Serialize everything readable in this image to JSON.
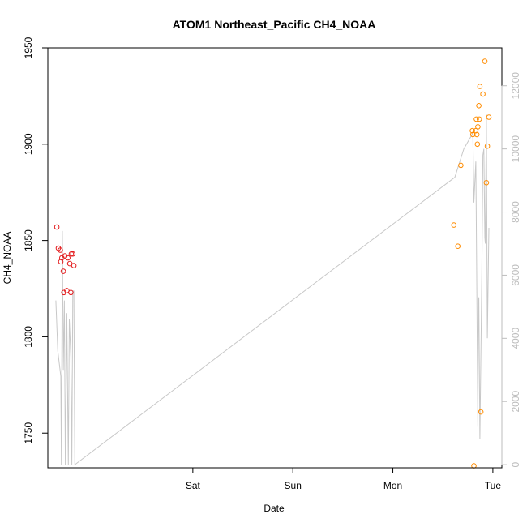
{
  "chart_data": {
    "type": "scatter",
    "title": "ATOM1 Northeast_Pacific CH4_NOAA",
    "xlabel": "Date",
    "ylabel": "CH4_NOAA",
    "x_ticks": [
      {
        "label": "Sat",
        "day": 1.0
      },
      {
        "label": "Sun",
        "day": 2.0
      },
      {
        "label": "Mon",
        "day": 3.0
      },
      {
        "label": "Tue",
        "day": 4.0
      }
    ],
    "xlim_days": [
      -0.45,
      4.09
    ],
    "ylim": [
      1732,
      1950
    ],
    "y_ticks": [
      1750,
      1800,
      1850,
      1900,
      1950
    ],
    "y2_ticks": [
      0,
      2000,
      4000,
      6000,
      8000,
      10000,
      12000
    ],
    "y2lim": [
      -100,
      13200
    ],
    "colors": {
      "axis": "#000000",
      "right_axis": "#bdbdbd",
      "altitude_line": "#c8c8c8",
      "segment_1": "#e31a1c",
      "segment_2": "#ff8c00"
    },
    "series": [
      {
        "color": "#e31a1c",
        "points": [
          [
            -0.36,
            1857
          ],
          [
            -0.345,
            1846
          ],
          [
            -0.325,
            1845
          ],
          [
            -0.32,
            1839
          ],
          [
            -0.31,
            1841
          ],
          [
            -0.295,
            1834
          ],
          [
            -0.29,
            1823
          ],
          [
            -0.28,
            1842
          ],
          [
            -0.26,
            1824
          ],
          [
            -0.25,
            1841
          ],
          [
            -0.23,
            1838
          ],
          [
            -0.22,
            1823
          ],
          [
            -0.215,
            1843
          ],
          [
            -0.2,
            1843
          ],
          [
            -0.19,
            1837
          ]
        ]
      },
      {
        "color": "#ff8c00",
        "points": [
          [
            3.61,
            1858
          ],
          [
            3.65,
            1847
          ],
          [
            3.68,
            1889
          ],
          [
            3.795,
            1907
          ],
          [
            3.8,
            1905
          ],
          [
            3.81,
            1733
          ],
          [
            3.83,
            1907
          ],
          [
            3.835,
            1913
          ],
          [
            3.84,
            1905
          ],
          [
            3.845,
            1900
          ],
          [
            3.85,
            1909
          ],
          [
            3.86,
            1920
          ],
          [
            3.865,
            1913
          ],
          [
            3.87,
            1930
          ],
          [
            3.88,
            1761
          ],
          [
            3.9,
            1926
          ],
          [
            3.92,
            1943
          ],
          [
            3.935,
            1880
          ],
          [
            3.945,
            1899
          ],
          [
            3.96,
            1914
          ]
        ]
      }
    ],
    "altitude": [
      [
        -0.37,
        5200
      ],
      [
        -0.35,
        3600
      ],
      [
        -0.32,
        2800
      ],
      [
        -0.315,
        0
      ],
      [
        -0.305,
        7400
      ],
      [
        -0.295,
        3000
      ],
      [
        -0.285,
        5200
      ],
      [
        -0.275,
        0
      ],
      [
        -0.26,
        4800
      ],
      [
        -0.245,
        0
      ],
      [
        -0.235,
        4600
      ],
      [
        -0.22,
        3400
      ],
      [
        -0.21,
        0
      ],
      [
        -0.2,
        5500
      ],
      [
        -0.19,
        5500
      ],
      [
        -0.18,
        0
      ],
      [
        3.62,
        9100
      ],
      [
        3.71,
        10000
      ],
      [
        3.8,
        10500
      ],
      [
        3.81,
        8300
      ],
      [
        3.83,
        9600
      ],
      [
        3.85,
        1200
      ],
      [
        3.855,
        5000
      ],
      [
        3.86,
        5300
      ],
      [
        3.87,
        800
      ],
      [
        3.89,
        6000
      ],
      [
        3.9,
        9800
      ],
      [
        3.91,
        10000
      ],
      [
        3.92,
        7200
      ],
      [
        3.925,
        7000
      ],
      [
        3.935,
        11100
      ],
      [
        3.945,
        4000
      ],
      [
        3.96,
        7500
      ]
    ]
  }
}
